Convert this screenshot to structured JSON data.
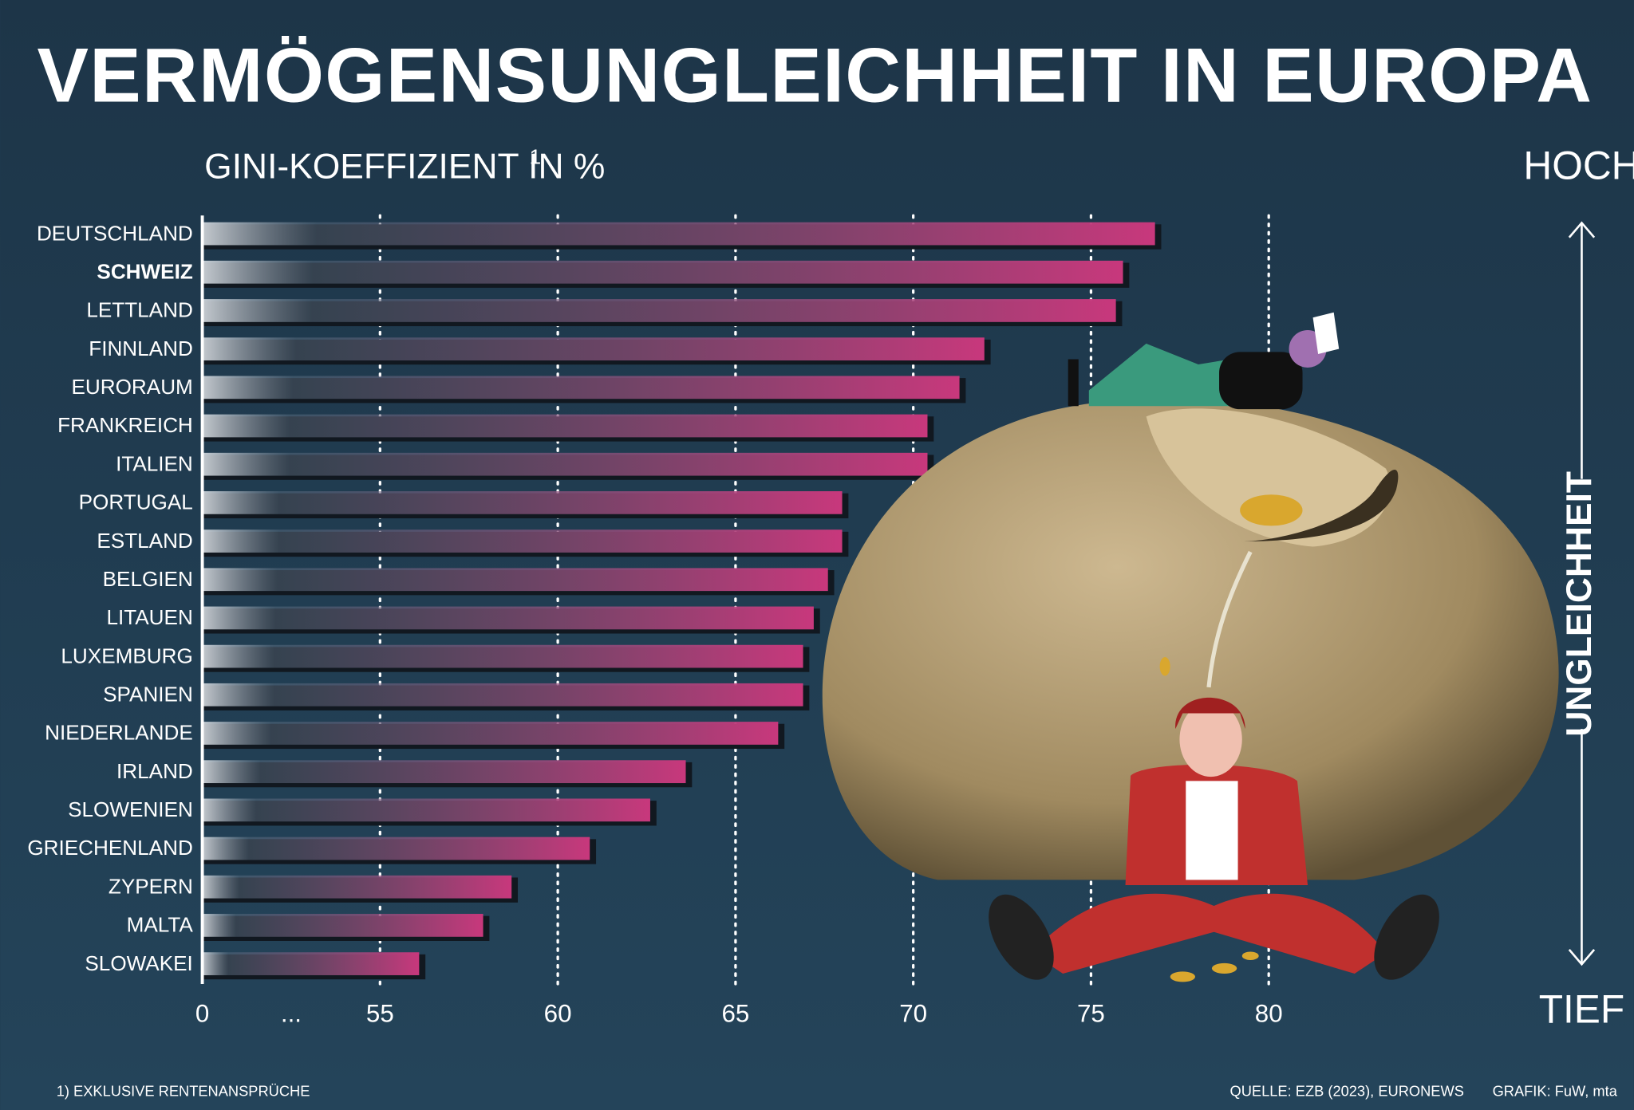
{
  "chart_data": {
    "type": "barh",
    "title": "VERMÖGENSUNGLEICHHEIT IN EUROPA",
    "subtitle": "GINI-KOEFFIZIENT IN %",
    "subtitle_note": "1",
    "scale_top": "HOCH",
    "scale_bottom": "TIEF",
    "scale_label": "UNGLEICHHEIT",
    "footnote": "1) EXKLUSIVE RENTENANSPRÜCHE",
    "source": "QUELLE: EZB (2023), EURONEWS",
    "credit": "GRAFIK: FuW, mta",
    "categories": [
      "DEUTSCHLAND",
      "SCHWEIZ",
      "LETTLAND",
      "FINNLAND",
      "EURORAUM",
      "FRANKREICH",
      "ITALIEN",
      "PORTUGAL",
      "ESTLAND",
      "BELGIEN",
      "LITAUEN",
      "LUXEMBURG",
      "SPANIEN",
      "NIEDERLANDE",
      "IRLAND",
      "SLOWENIEN",
      "GRIECHENLAND",
      "ZYPERN",
      "MALTA",
      "SLOWAKEI"
    ],
    "values": [
      76.8,
      75.9,
      75.7,
      72.0,
      71.3,
      70.4,
      70.4,
      68.0,
      68.0,
      67.6,
      67.2,
      66.9,
      66.9,
      66.2,
      63.6,
      62.6,
      60.9,
      58.7,
      57.9,
      56.1
    ],
    "highlight_category": "SCHWEIZ",
    "color": "#c8387c",
    "xlim": [
      50,
      83
    ],
    "axis_break": "...",
    "xticks": [
      0,
      55,
      60,
      65,
      70,
      75,
      80
    ],
    "grid": true
  }
}
